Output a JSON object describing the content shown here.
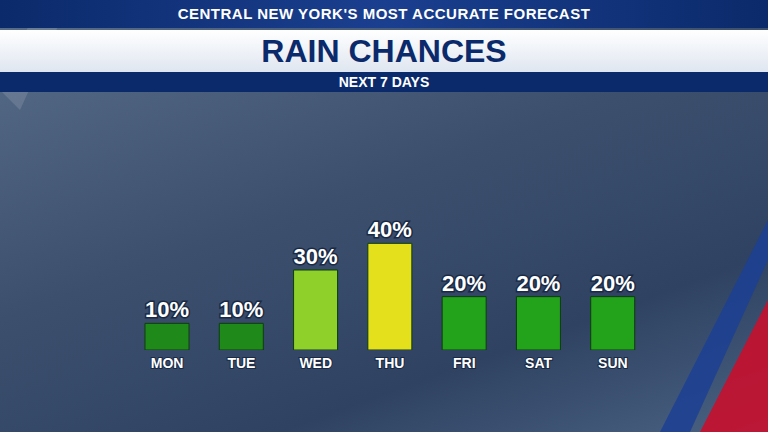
{
  "chart_data": {
    "type": "bar",
    "annotations": [
      "CENTRAL NEW YORK'S MOST ACCURATE FORECAST"
    ],
    "title": "RAIN CHANCES",
    "subtitle": "NEXT 7 DAYS",
    "categories": [
      "MON",
      "TUE",
      "WED",
      "THU",
      "FRI",
      "SAT",
      "SUN"
    ],
    "values": [
      10,
      10,
      30,
      40,
      20,
      20,
      20
    ],
    "value_labels": [
      "10%",
      "10%",
      "30%",
      "40%",
      "20%",
      "20%",
      "20%"
    ],
    "colors": [
      "#1f8a1a",
      "#1f8a1a",
      "#8fd12a",
      "#e4e01c",
      "#23a31c",
      "#23a31c",
      "#23a31c"
    ],
    "ylim": [
      0,
      45
    ],
    "data_labels": true,
    "tick_labels": "x",
    "grid": false
  }
}
